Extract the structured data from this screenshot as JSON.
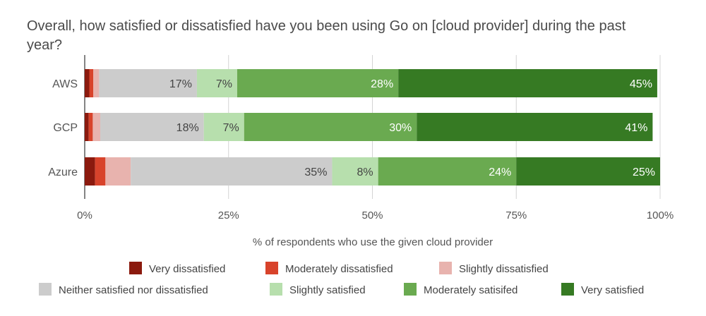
{
  "chart_data": {
    "type": "bar",
    "orientation": "horizontal",
    "stacked": true,
    "title": "Overall, how satisfied or dissatisfied have you been using Go on [cloud provider] during the past year?",
    "title_lines": [
      "Overall, how satisfied or dissatisfied have you been using Go on [cloud provider] during the past",
      "year?"
    ],
    "xlabel": "% of respondents who use the given cloud provider",
    "ylabel": "",
    "xlim": [
      0,
      100
    ],
    "xticks": [
      0,
      25,
      50,
      75,
      100
    ],
    "xtick_labels": [
      "0%",
      "25%",
      "50%",
      "75%",
      "100%"
    ],
    "grid": true,
    "legend_position": "bottom",
    "categories": [
      "AWS",
      "GCP",
      "Azure"
    ],
    "series": [
      {
        "name": "Very dissatisfied",
        "color": "#8b1a0e",
        "values": [
          0.8,
          0.7,
          1.8
        ],
        "labels": [
          "",
          "",
          ""
        ]
      },
      {
        "name": "Moderately dissatisfied",
        "color": "#d8432b",
        "values": [
          0.7,
          0.7,
          1.8
        ],
        "labels": [
          "",
          "",
          ""
        ]
      },
      {
        "name": "Slightly dissatisfied",
        "color": "#e8b3ae",
        "values": [
          1.0,
          1.3,
          4.4
        ],
        "labels": [
          "",
          "",
          ""
        ]
      },
      {
        "name": "Neither satisfied nor dissatisfied",
        "color": "#cccccc",
        "values": [
          17,
          18,
          35
        ],
        "labels": [
          "17%",
          "18%",
          "35%"
        ]
      },
      {
        "name": "Slightly satisfied",
        "color": "#b7dfad",
        "values": [
          7,
          7,
          8
        ],
        "labels": [
          "7%",
          "7%",
          "8%"
        ]
      },
      {
        "name": "Moderately satisifed",
        "color": "#6aaa50",
        "values": [
          28,
          30,
          24
        ],
        "labels": [
          "28%",
          "30%",
          "24%"
        ]
      },
      {
        "name": "Very satisfied",
        "color": "#367a23",
        "values": [
          45,
          41,
          25
        ],
        "labels": [
          "45%",
          "41%",
          "25%"
        ]
      }
    ]
  }
}
